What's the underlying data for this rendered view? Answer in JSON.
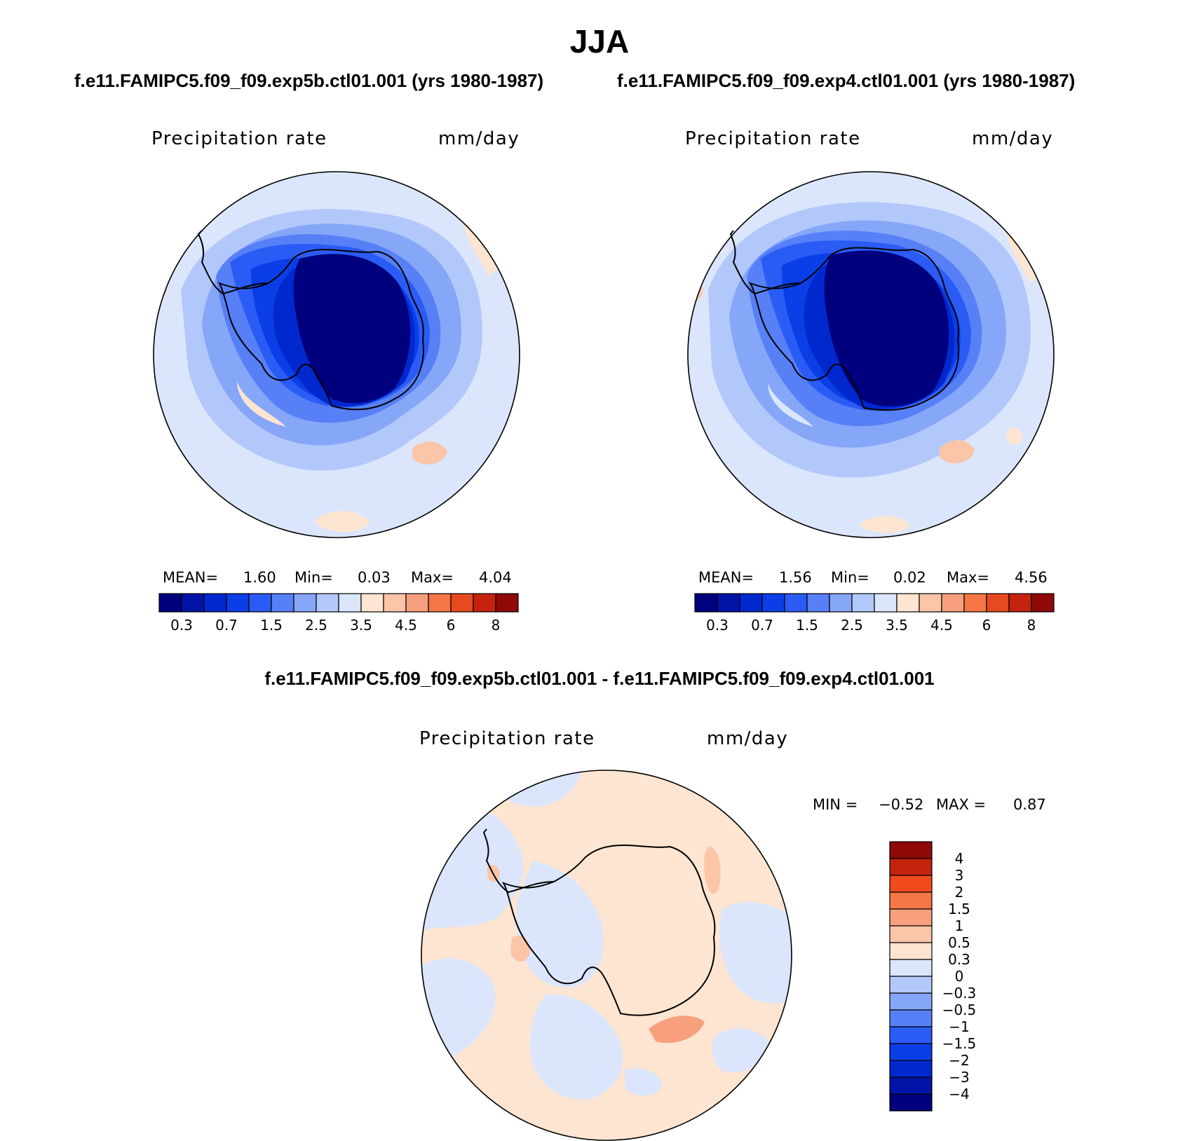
{
  "title": "JJA",
  "panels": [
    {
      "case": "f.e11.FAMIPC5.f09_f09.exp5b.ctl01.001 (yrs 1980-1987)",
      "variable": "Precipitation rate",
      "units": "mm/day",
      "stats": {
        "mean_label": "MEAN=",
        "mean": "1.60",
        "min_label": "Min=",
        "min": "0.03",
        "max_label": "Max=",
        "max": "4.04"
      }
    },
    {
      "case": "f.e11.FAMIPC5.f09_f09.exp4.ctl01.001 (yrs 1980-1987)",
      "variable": "Precipitation rate",
      "units": "mm/day",
      "stats": {
        "mean_label": "MEAN=",
        "mean": "1.56",
        "min_label": "Min=",
        "min": "0.02",
        "max_label": "Max=",
        "max": "4.56"
      }
    }
  ],
  "diff": {
    "title": "f.e11.FAMIPC5.f09_f09.exp5b.ctl01.001 - f.e11.FAMIPC5.f09_f09.exp4.ctl01.001",
    "variable": "Precipitation rate",
    "units": "mm/day",
    "stats": {
      "min_label": "MIN =",
      "min": "−0.52",
      "max_label": "MAX =",
      "max": "0.87"
    }
  },
  "colors": {
    "field_scale": [
      "#00007f",
      "#0014a8",
      "#0028cf",
      "#0a3ee6",
      "#2a5cf5",
      "#5780f7",
      "#86a6f8",
      "#b3c8fa",
      "#dbe6fc",
      "#fde5d2",
      "#fbc5a8",
      "#f8a07d",
      "#f57647",
      "#e84a1f",
      "#c5230e",
      "#8f0909"
    ],
    "diff_scale": [
      "#00007f",
      "#0014a8",
      "#0028cf",
      "#0a3ee6",
      "#2a5cf5",
      "#5780f7",
      "#86a6f8",
      "#b3c8fa",
      "#dbe6fc",
      "#fde5d2",
      "#fbc5a8",
      "#f8a07d",
      "#f57647",
      "#f24a1a",
      "#c5230e",
      "#8f0909"
    ],
    "land_outline": "#000000"
  },
  "chart_data": [
    {
      "type": "heatmap",
      "projection": "south-polar-stereographic",
      "title": "f.e11.FAMIPC5.f09_f09.exp5b.ctl01.001 (yrs 1980-1987)",
      "variable": "Precipitation rate",
      "units": "mm/day",
      "colorbar_levels": [
        0.2,
        0.3,
        0.5,
        0.7,
        1,
        1.5,
        2,
        2.5,
        3,
        3.5,
        4,
        4.5,
        5,
        6,
        7,
        8,
        9
      ],
      "colorbar_tick_labels": [
        "0.3",
        "0.7",
        "1.5",
        "2.5",
        "3.5",
        "4.5",
        "6",
        "8"
      ],
      "mean": 1.6,
      "min": 0.03,
      "max": 4.04
    },
    {
      "type": "heatmap",
      "projection": "south-polar-stereographic",
      "title": "f.e11.FAMIPC5.f09_f09.exp4.ctl01.001 (yrs 1980-1987)",
      "variable": "Precipitation rate",
      "units": "mm/day",
      "colorbar_levels": [
        0.2,
        0.3,
        0.5,
        0.7,
        1,
        1.5,
        2,
        2.5,
        3,
        3.5,
        4,
        4.5,
        5,
        6,
        7,
        8,
        9
      ],
      "colorbar_tick_labels": [
        "0.3",
        "0.7",
        "1.5",
        "2.5",
        "3.5",
        "4.5",
        "6",
        "8"
      ],
      "mean": 1.56,
      "min": 0.02,
      "max": 4.56
    },
    {
      "type": "heatmap",
      "projection": "south-polar-stereographic",
      "title": "f.e11.FAMIPC5.f09_f09.exp5b.ctl01.001 - f.e11.FAMIPC5.f09_f09.exp4.ctl01.001",
      "variable": "Precipitation rate",
      "units": "mm/day",
      "colorbar_tick_labels": [
        "4",
        "3",
        "2",
        "1.5",
        "1",
        "0.5",
        "0.3",
        "0",
        "−0.3",
        "−0.5",
        "−1",
        "−1.5",
        "−2",
        "−3",
        "−4"
      ],
      "min": -0.52,
      "max": 0.87
    }
  ]
}
